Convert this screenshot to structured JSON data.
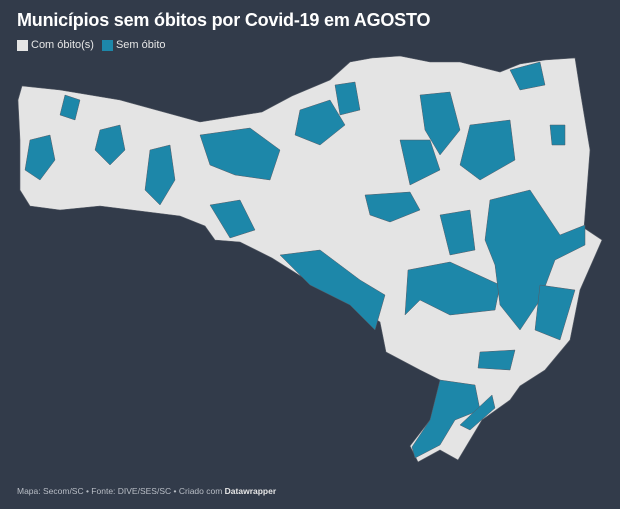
{
  "title": "Municípios sem óbitos por Covid-19 em AGOSTO",
  "legend": [
    {
      "label": "Com óbito(s)",
      "color": "#e4e4e4"
    },
    {
      "label": "Sem óbito",
      "color": "#1d87a9"
    }
  ],
  "footer": {
    "text": "Mapa: Secom/SC • Fonte: DIVE/SES/SC • Criado com ",
    "brand": "Datawrapper"
  },
  "colors": {
    "background": "#323b4a",
    "border": "#555b66"
  }
}
